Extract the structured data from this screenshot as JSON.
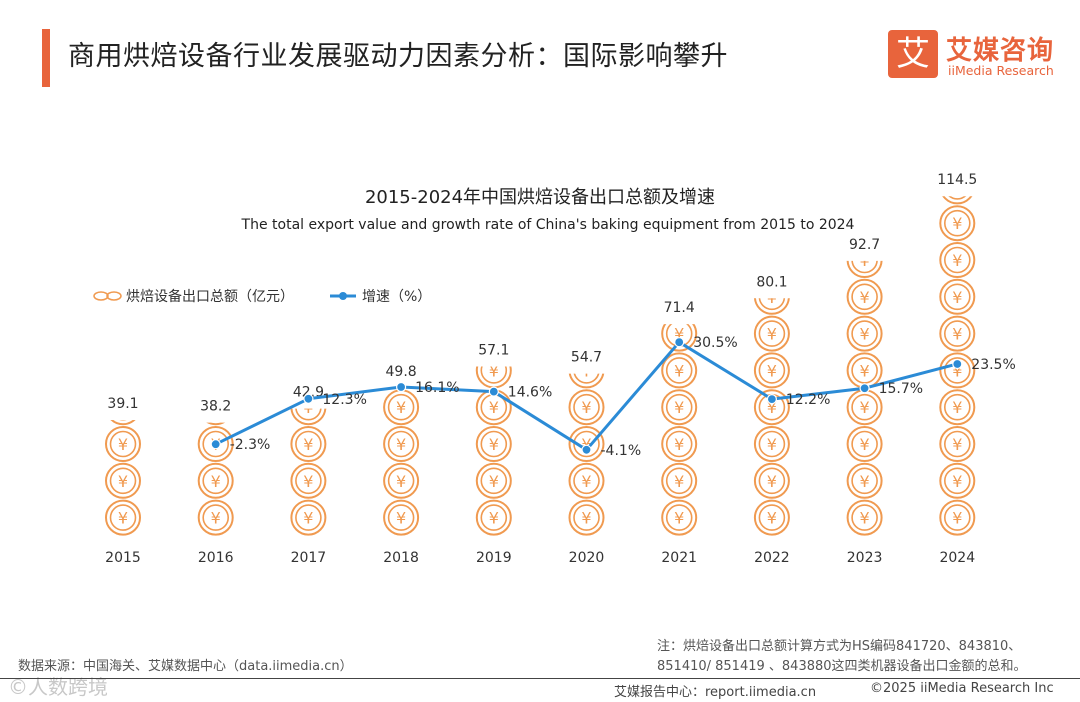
{
  "header": {
    "title": "商用烘焙设备行业发展驱动力因素分析：国际影响攀升",
    "logo_mark": "艾",
    "logo_cn": "艾媒咨询",
    "logo_en": "iiMedia Research"
  },
  "chart_data": {
    "type": "bar+line",
    "title": "2015-2024年中国烘焙设备出口总额及增速",
    "subtitle": "The total export value and growth rate of China's baking equipment from 2015 to 2024",
    "categories": [
      "2015",
      "2016",
      "2017",
      "2018",
      "2019",
      "2020",
      "2021",
      "2022",
      "2023",
      "2024"
    ],
    "series": [
      {
        "name": "烘焙设备出口总额（亿元）",
        "type": "pictorial-bar",
        "values": [
          39.1,
          38.2,
          42.9,
          49.8,
          57.1,
          54.7,
          71.4,
          80.1,
          92.7,
          114.5
        ],
        "labels": [
          "39.1",
          "38.2",
          "42.9",
          "49.8",
          "57.1",
          "54.7",
          "71.4",
          "80.1",
          "92.7",
          "114.5"
        ]
      },
      {
        "name": "增速（%）",
        "type": "line",
        "values": [
          null,
          -2.3,
          12.3,
          16.1,
          14.6,
          -4.1,
          30.5,
          12.2,
          15.7,
          23.5
        ],
        "labels": [
          "",
          "-2.3%",
          "12.3%",
          "16.1%",
          "14.6%",
          "-4.1%",
          "30.5%",
          "12.2%",
          "15.7%",
          "23.5%"
        ]
      }
    ],
    "legend_position": "top-left",
    "coin_symbol": "¥",
    "bar_color": "#f09a50",
    "line_color": "#2b8bd6"
  },
  "footer": {
    "note_line1": "注：烘焙设备出口总额计算方式为HS编码841720、843810、",
    "note_line2": "851410/ 851419 、843880这四类机器设备出口金额的总和。",
    "source": "数据来源：中国海关、艾媒数据中心（data.iimedia.cn）",
    "watermark": "©人数跨境",
    "center": "艾媒报告中心：report.iimedia.cn",
    "copyright": "©2025  iiMedia Research  Inc"
  }
}
